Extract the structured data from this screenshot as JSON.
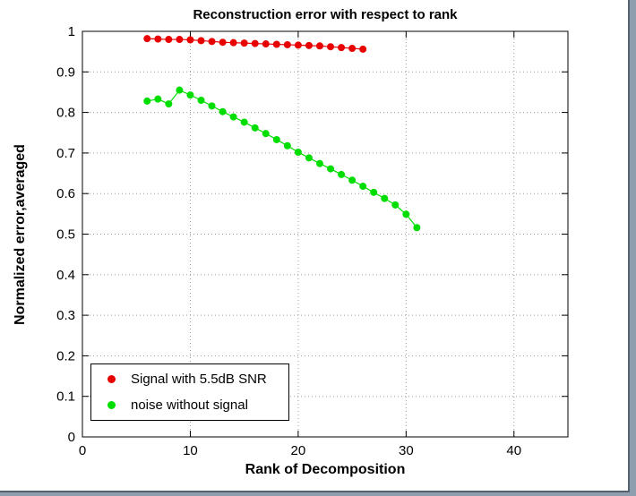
{
  "chart_data": {
    "type": "line",
    "title": "Reconstruction error with respect to rank",
    "xlabel": "Rank of Decomposition",
    "ylabel": "Normalized error,averaged",
    "xlim": [
      0,
      45
    ],
    "ylim": [
      0,
      1
    ],
    "xticks": [
      0,
      10,
      20,
      30,
      40
    ],
    "yticks": [
      0,
      0.1,
      0.2,
      0.3,
      0.4,
      0.5,
      0.6,
      0.7,
      0.8,
      0.9,
      1
    ],
    "grid": true,
    "legend_position": "lower-left",
    "series": [
      {
        "name": "Signal with 5.5dB SNR",
        "color": "#e80000",
        "marker": "dot",
        "x": [
          6,
          7,
          8,
          9,
          10,
          11,
          12,
          13,
          14,
          15,
          16,
          17,
          18,
          19,
          20,
          21,
          22,
          23,
          24,
          25,
          26
        ],
        "y": [
          0.982,
          0.981,
          0.98,
          0.98,
          0.979,
          0.977,
          0.975,
          0.973,
          0.972,
          0.971,
          0.97,
          0.969,
          0.968,
          0.967,
          0.966,
          0.965,
          0.964,
          0.962,
          0.96,
          0.958,
          0.956
        ]
      },
      {
        "name": "noise without signal",
        "color": "#00dd00",
        "marker": "dot",
        "x": [
          6,
          7,
          8,
          9,
          10,
          11,
          12,
          13,
          14,
          15,
          16,
          17,
          18,
          19,
          20,
          21,
          22,
          23,
          24,
          25,
          26,
          27,
          28,
          29,
          30,
          31
        ],
        "y": [
          0.828,
          0.833,
          0.821,
          0.855,
          0.843,
          0.83,
          0.816,
          0.802,
          0.789,
          0.776,
          0.762,
          0.748,
          0.733,
          0.718,
          0.702,
          0.688,
          0.674,
          0.661,
          0.647,
          0.633,
          0.618,
          0.603,
          0.588,
          0.572,
          0.549,
          0.516
        ]
      }
    ]
  }
}
